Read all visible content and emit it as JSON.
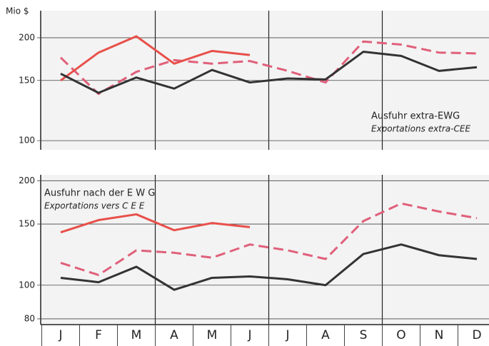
{
  "chart_data": [
    {
      "type": "line",
      "y_label": "Mio $",
      "log_scale": true,
      "ylim": [
        94,
        240
      ],
      "yticks": [
        100,
        150,
        200
      ],
      "annotations": [
        "Ausfuhr extra-EWG",
        "Exportations extra-CEE"
      ],
      "series": [
        {
          "color": "#e0607a",
          "dashed": true,
          "values": [
            175,
            137,
            159,
            172,
            168,
            171,
            160,
            148,
            195,
            191,
            181,
            180
          ]
        },
        {
          "color": "#e8504a",
          "dashed": false,
          "values": [
            150,
            181,
            202,
            168,
            183,
            178,
            null,
            null,
            null,
            null,
            null,
            null
          ]
        },
        {
          "color": "#333333",
          "dashed": false,
          "values": [
            157,
            138,
            153,
            142,
            161,
            148,
            152,
            151,
            182,
            177,
            160,
            164
          ]
        }
      ]
    },
    {
      "type": "line",
      "log_scale": true,
      "ylim": [
        77,
        208
      ],
      "yticks": [
        80,
        100,
        150,
        200
      ],
      "categories": [
        "J",
        "F",
        "M",
        "A",
        "M",
        "J",
        "J",
        "A",
        "S",
        "O",
        "N",
        "D"
      ],
      "annotations": [
        "Ausfuhr nach der E W G",
        "Exportations vers C E E"
      ],
      "series": [
        {
          "color": "#e0607a",
          "dashed": true,
          "values": [
            116,
            107,
            126,
            124,
            120,
            131,
            126,
            119,
            153,
            172,
            163,
            156
          ]
        },
        {
          "color": "#e8504a",
          "dashed": false,
          "values": [
            142,
            154,
            160,
            144,
            151,
            147,
            null,
            null,
            null,
            null,
            null,
            null
          ]
        },
        {
          "color": "#333333",
          "dashed": false,
          "values": [
            105,
            102,
            113,
            97,
            105,
            106,
            104,
            100,
            123,
            131,
            122,
            119
          ]
        }
      ]
    }
  ]
}
